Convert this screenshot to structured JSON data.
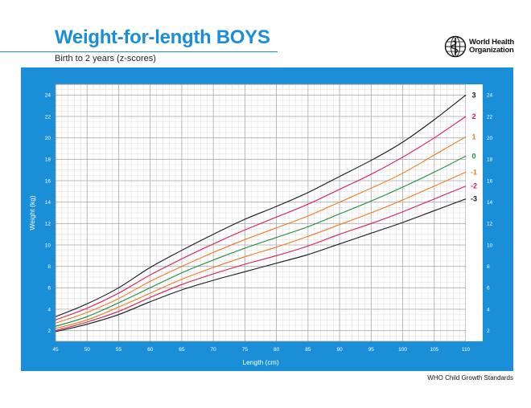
{
  "header": {
    "title": "Weight-for-length BOYS",
    "subtitle": "Birth to 2 years (z-scores)",
    "org_line1": "World Health",
    "org_line2": "Organization"
  },
  "footer": {
    "text": "WHO Child Growth Standards"
  },
  "colors": {
    "frame": "#1a8fd8",
    "z3": "#1a1a1a",
    "z2": "#d81b55",
    "z1": "#f07a1e",
    "z0": "#178c3f",
    "zm1": "#f07a1e",
    "zm2": "#d81b55",
    "zm3": "#1a1a1a"
  },
  "chart_data": {
    "type": "line",
    "xlabel": "Length (cm)",
    "ylabel": "Weight (kg)",
    "xlim": [
      45,
      110
    ],
    "ylim": [
      1,
      25
    ],
    "x_ticks": [
      45,
      50,
      55,
      60,
      65,
      70,
      75,
      80,
      85,
      90,
      95,
      100,
      105,
      110
    ],
    "y_ticks": [
      2,
      4,
      6,
      8,
      10,
      12,
      14,
      16,
      18,
      20,
      22,
      24
    ],
    "grid": true,
    "x": [
      45,
      50,
      55,
      60,
      65,
      70,
      75,
      80,
      85,
      90,
      95,
      100,
      105,
      110
    ],
    "series": [
      {
        "name": "3",
        "color_key": "z3",
        "values": [
          3.3,
          4.5,
          6.0,
          7.9,
          9.5,
          11.0,
          12.4,
          13.6,
          14.9,
          16.4,
          17.9,
          19.6,
          21.7,
          24.0
        ]
      },
      {
        "name": "2",
        "color_key": "z2",
        "values": [
          3.0,
          4.1,
          5.5,
          7.2,
          8.7,
          10.1,
          11.4,
          12.6,
          13.8,
          15.2,
          16.6,
          18.2,
          20.0,
          22.0
        ]
      },
      {
        "name": "1",
        "color_key": "z1",
        "values": [
          2.7,
          3.7,
          5.0,
          6.6,
          8.0,
          9.3,
          10.5,
          11.6,
          12.7,
          14.0,
          15.3,
          16.7,
          18.4,
          20.1
        ]
      },
      {
        "name": "0",
        "color_key": "z0",
        "values": [
          2.4,
          3.3,
          4.6,
          6.0,
          7.4,
          8.6,
          9.7,
          10.7,
          11.7,
          12.9,
          14.1,
          15.4,
          16.8,
          18.3
        ]
      },
      {
        "name": "-1",
        "color_key": "zm1",
        "values": [
          2.2,
          3.0,
          4.2,
          5.5,
          6.8,
          7.9,
          8.9,
          9.8,
          10.8,
          11.9,
          13.0,
          14.2,
          15.5,
          16.8
        ]
      },
      {
        "name": "-2",
        "color_key": "zm2",
        "values": [
          2.0,
          2.8,
          3.8,
          5.1,
          6.3,
          7.3,
          8.2,
          9.0,
          9.9,
          11.0,
          12.0,
          13.1,
          14.3,
          15.5
        ]
      },
      {
        "name": "-3",
        "color_key": "zm3",
        "values": [
          1.9,
          2.6,
          3.5,
          4.7,
          5.8,
          6.7,
          7.5,
          8.3,
          9.1,
          10.1,
          11.1,
          12.1,
          13.2,
          14.3
        ]
      }
    ]
  }
}
